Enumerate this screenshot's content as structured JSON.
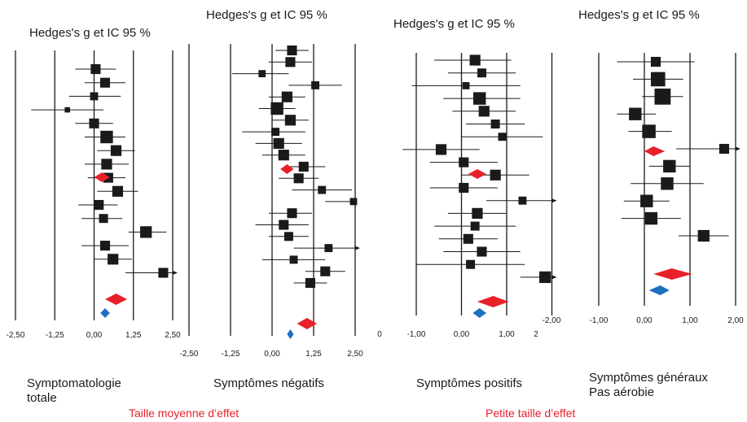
{
  "chart_data": [
    {
      "type": "forest",
      "title": "Hedges's g et IC 95 %",
      "caption_lines": [
        "Symptomatologie",
        "totale"
      ],
      "x_ticks": [
        -2.5,
        -1.25,
        0,
        1.25,
        2.5
      ],
      "x_tick_labels": [
        "-2,50",
        "-1,25",
        "0,00",
        "1,25",
        "2,50"
      ],
      "xlim": [
        -2.5,
        2.5
      ],
      "studies": [
        {
          "g": 0.05,
          "lo": -0.6,
          "hi": 0.7,
          "size": 1.1
        },
        {
          "g": 0.35,
          "lo": -0.3,
          "hi": 1.0,
          "size": 1.1
        },
        {
          "g": 0.0,
          "lo": -0.8,
          "hi": 0.85,
          "size": 0.9
        },
        {
          "g": -0.85,
          "lo": -2.0,
          "hi": 0.3,
          "size": 0.6
        },
        {
          "g": 0.0,
          "lo": -0.6,
          "hi": 0.6,
          "size": 1.1
        },
        {
          "g": 0.4,
          "lo": -0.3,
          "hi": 1.0,
          "size": 1.4
        },
        {
          "g": 0.7,
          "lo": 0.1,
          "hi": 1.3,
          "size": 1.2
        },
        {
          "g": 0.4,
          "lo": -0.3,
          "hi": 1.1,
          "size": 1.2
        },
        {
          "g": 0.45,
          "lo": -0.2,
          "hi": 1.0,
          "size": 1.1
        },
        {
          "g": 0.75,
          "lo": 0.1,
          "hi": 1.4,
          "size": 1.2
        },
        {
          "g": 0.15,
          "lo": -0.5,
          "hi": 0.75,
          "size": 1.1
        },
        {
          "g": 0.3,
          "lo": -0.4,
          "hi": 0.9,
          "size": 1.0
        },
        {
          "g": 1.65,
          "lo": 1.1,
          "hi": 2.3,
          "size": 1.3
        },
        {
          "g": 0.35,
          "lo": -0.4,
          "hi": 1.1,
          "size": 1.1
        },
        {
          "g": 0.6,
          "lo": 0.0,
          "hi": 1.2,
          "size": 1.2
        },
        {
          "g": 2.2,
          "lo": 1.0,
          "hi": 2.5,
          "size": 1.1,
          "arrow": true
        }
      ],
      "pooled": [
        {
          "g": 0.25,
          "lo": 0.0,
          "hi": 0.5,
          "color": "#e8202a"
        },
        {
          "g": 0.7,
          "lo": 0.35,
          "hi": 1.05,
          "color": "#e8202a"
        },
        {
          "g": 0.35,
          "lo": 0.2,
          "hi": 0.5,
          "color": "#1f6fc0"
        }
      ]
    },
    {
      "type": "forest",
      "title": "Hedges's g et IC 95 %",
      "caption_lines": [
        "Symptômes négatifs"
      ],
      "x_ticks": [
        -2.5,
        -1.25,
        0,
        1.25,
        2.5
      ],
      "x_tick_labels": [
        "-2,50",
        "-1,25",
        "0,00",
        "1,25",
        "2,50"
      ],
      "xlim": [
        -2.5,
        2.5
      ],
      "studies": [
        {
          "g": 0.6,
          "lo": 0.1,
          "hi": 1.1,
          "size": 1.1
        },
        {
          "g": 0.55,
          "lo": -0.1,
          "hi": 1.2,
          "size": 1.1
        },
        {
          "g": -0.3,
          "lo": -1.2,
          "hi": 0.5,
          "size": 0.8
        },
        {
          "g": 1.3,
          "lo": 0.5,
          "hi": 2.1,
          "size": 0.9
        },
        {
          "g": 0.45,
          "lo": -0.1,
          "hi": 1.0,
          "size": 1.2
        },
        {
          "g": 0.15,
          "lo": -0.4,
          "hi": 0.7,
          "size": 1.4
        },
        {
          "g": 0.55,
          "lo": 0.0,
          "hi": 1.1,
          "size": 1.2
        },
        {
          "g": 0.1,
          "lo": -0.9,
          "hi": 1.0,
          "size": 0.9
        },
        {
          "g": 0.2,
          "lo": -0.5,
          "hi": 0.9,
          "size": 1.2
        },
        {
          "g": 0.35,
          "lo": -0.3,
          "hi": 1.0,
          "size": 1.2
        },
        {
          "g": 0.95,
          "lo": 0.4,
          "hi": 1.6,
          "size": 1.1
        },
        {
          "g": 0.8,
          "lo": 0.2,
          "hi": 1.4,
          "size": 1.1
        },
        {
          "g": 1.5,
          "lo": 0.6,
          "hi": 2.4,
          "size": 0.9
        },
        {
          "g": 2.45,
          "lo": 1.6,
          "hi": 2.5,
          "size": 0.8
        },
        {
          "g": 0.6,
          "lo": -0.1,
          "hi": 1.2,
          "size": 1.1
        },
        {
          "g": 0.35,
          "lo": -0.5,
          "hi": 1.1,
          "size": 1.1
        },
        {
          "g": 0.5,
          "lo": -0.1,
          "hi": 1.1,
          "size": 1.0
        },
        {
          "g": 1.7,
          "lo": 0.65,
          "hi": 2.5,
          "size": 0.9,
          "arrow": true
        },
        {
          "g": 0.65,
          "lo": -0.3,
          "hi": 1.6,
          "size": 0.9
        },
        {
          "g": 1.6,
          "lo": 1.0,
          "hi": 2.2,
          "size": 1.1
        },
        {
          "g": 1.15,
          "lo": 0.65,
          "hi": 1.65,
          "size": 1.1
        }
      ],
      "pooled": [
        {
          "g": 0.45,
          "lo": 0.25,
          "hi": 0.65,
          "color": "#e8202a"
        },
        {
          "g": 1.05,
          "lo": 0.75,
          "hi": 1.35,
          "color": "#e8202a"
        },
        {
          "g": 0.55,
          "lo": 0.45,
          "hi": 0.65,
          "color": "#1f6fc0"
        }
      ]
    },
    {
      "type": "forest",
      "title": "Hedges's g et IC 95 %",
      "caption_lines": [
        "Symptômes positifs"
      ],
      "x_ticks": [
        -1,
        0,
        1
      ],
      "x_tick_labels": [
        "-1,00",
        "0,00",
        "1,00"
      ],
      "x_extra_labels": [
        "0",
        "2",
        "-2,00"
      ],
      "xlim": [
        -2,
        2
      ],
      "studies": [
        {
          "g": 0.3,
          "lo": -0.6,
          "hi": 1.1,
          "size": 1.2
        },
        {
          "g": 0.45,
          "lo": -0.3,
          "hi": 1.2,
          "size": 1.0
        },
        {
          "g": 0.1,
          "lo": -1.1,
          "hi": 1.3,
          "size": 0.8
        },
        {
          "g": 0.4,
          "lo": -0.4,
          "hi": 1.3,
          "size": 1.4
        },
        {
          "g": 0.5,
          "lo": -0.2,
          "hi": 1.2,
          "size": 1.2
        },
        {
          "g": 0.75,
          "lo": 0.1,
          "hi": 1.4,
          "size": 1.0
        },
        {
          "g": 0.9,
          "lo": 0.0,
          "hi": 1.8,
          "size": 0.9
        },
        {
          "g": -0.45,
          "lo": -1.3,
          "hi": 0.4,
          "size": 1.2
        },
        {
          "g": 0.05,
          "lo": -0.7,
          "hi": 0.8,
          "size": 1.1
        },
        {
          "g": 0.75,
          "lo": 0.0,
          "hi": 1.5,
          "size": 1.2
        },
        {
          "g": 0.05,
          "lo": -0.7,
          "hi": 0.8,
          "size": 1.1
        },
        {
          "g": 1.35,
          "lo": 0.55,
          "hi": 2.0,
          "size": 0.9,
          "arrow": true
        },
        {
          "g": 0.35,
          "lo": -0.3,
          "hi": 1.0,
          "size": 1.2
        },
        {
          "g": 0.3,
          "lo": -0.6,
          "hi": 1.2,
          "size": 1.0
        },
        {
          "g": 0.15,
          "lo": -0.5,
          "hi": 0.8,
          "size": 1.1
        },
        {
          "g": 0.45,
          "lo": -0.4,
          "hi": 1.3,
          "size": 1.1
        },
        {
          "g": 0.2,
          "lo": -1.0,
          "hi": 1.4,
          "size": 1.0
        },
        {
          "g": 1.85,
          "lo": 1.3,
          "hi": 2.0,
          "size": 1.3,
          "arrow": true
        }
      ],
      "pooled": [
        {
          "g": 0.35,
          "lo": 0.15,
          "hi": 0.55,
          "color": "#e8202a"
        },
        {
          "g": 0.7,
          "lo": 0.35,
          "hi": 1.05,
          "color": "#e8202a"
        },
        {
          "g": 0.4,
          "lo": 0.25,
          "hi": 0.55,
          "color": "#1f6fc0"
        }
      ]
    },
    {
      "type": "forest",
      "title": "Hedges's g et IC 95 %",
      "caption_lines": [
        "Symptômes généraux",
        "Pas aérobie"
      ],
      "x_ticks": [
        -1,
        0,
        1,
        2
      ],
      "x_tick_labels": [
        "-1,00",
        "0,00",
        "1,00",
        "2,00"
      ],
      "xlim": [
        -1,
        2
      ],
      "studies": [
        {
          "g": 0.25,
          "lo": -0.6,
          "hi": 1.1,
          "size": 1.1
        },
        {
          "g": 0.3,
          "lo": -0.25,
          "hi": 0.85,
          "size": 1.6
        },
        {
          "g": 0.4,
          "lo": -0.05,
          "hi": 0.85,
          "size": 1.8
        },
        {
          "g": -0.2,
          "lo": -0.6,
          "hi": 0.25,
          "size": 1.4
        },
        {
          "g": 0.1,
          "lo": -0.35,
          "hi": 0.6,
          "size": 1.5
        },
        {
          "g": 1.75,
          "lo": 0.7,
          "hi": 2.0,
          "size": 1.1,
          "arrow": true
        },
        {
          "g": 0.55,
          "lo": 0.1,
          "hi": 1.0,
          "size": 1.4
        },
        {
          "g": 0.5,
          "lo": -0.3,
          "hi": 1.3,
          "size": 1.4
        },
        {
          "g": 0.05,
          "lo": -0.45,
          "hi": 0.55,
          "size": 1.4
        },
        {
          "g": 0.15,
          "lo": -0.5,
          "hi": 0.8,
          "size": 1.4
        },
        {
          "g": 1.3,
          "lo": 0.75,
          "hi": 1.85,
          "size": 1.3
        }
      ],
      "pooled": [
        {
          "g": 0.2,
          "lo": 0.0,
          "hi": 0.45,
          "color": "#e8202a"
        },
        {
          "g": 0.6,
          "lo": 0.2,
          "hi": 1.05,
          "color": "#e8202a"
        },
        {
          "g": 0.35,
          "lo": 0.1,
          "hi": 0.55,
          "color": "#1f6fc0"
        }
      ]
    }
  ],
  "footer": {
    "left": "Taille moyenne d’effet",
    "right": "Petite taille d’effet"
  },
  "colors": {
    "pooled_red": "#e8202a",
    "pooled_blue": "#1f6fc0",
    "marker": "#1a1a1a",
    "footer_text": "#e8202a"
  }
}
